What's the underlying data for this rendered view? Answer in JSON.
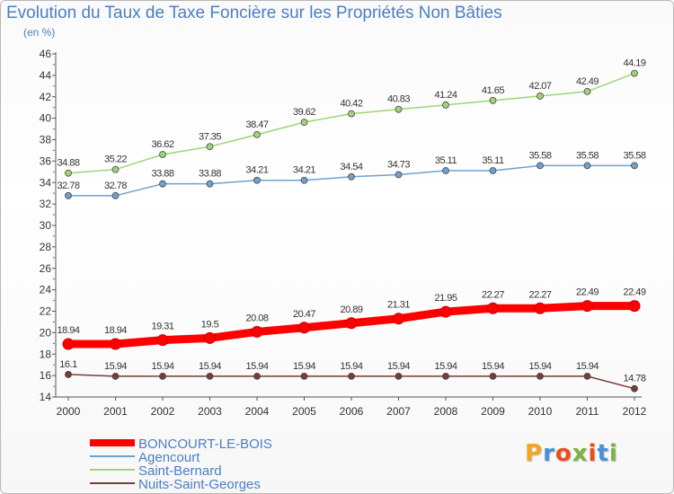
{
  "header": {
    "title": "Evolution du Taux de Taxe Foncière sur les Propriétés Non Bâties",
    "unit": "(en %)"
  },
  "logo": {
    "text": "Proxiti",
    "colors": [
      "#f5a623",
      "#4a90d9",
      "#e94e1b",
      "#7cb342",
      "#e94e1b",
      "#4a90d9",
      "#7cb342"
    ]
  },
  "chart_data": {
    "type": "line",
    "title": "Evolution du Taux de Taxe Foncière sur les Propriétés Non Bâties",
    "ylabel": "(en %)",
    "xlabel": "",
    "x": [
      "2000",
      "2001",
      "2002",
      "2003",
      "2004",
      "2005",
      "2006",
      "2007",
      "2008",
      "2009",
      "2010",
      "2011",
      "2012"
    ],
    "ylim": [
      14,
      46
    ],
    "yticks": [
      14,
      16,
      18,
      20,
      22,
      24,
      26,
      28,
      30,
      32,
      34,
      36,
      38,
      40,
      42,
      44,
      46
    ],
    "grid": false,
    "legend_position": "bottom-left",
    "series": [
      {
        "name": "BONCOURT-LE-BOIS",
        "color": "#ff0000",
        "values": [
          18.94,
          18.94,
          19.31,
          19.5,
          20.08,
          20.47,
          20.89,
          21.31,
          21.95,
          22.27,
          22.27,
          22.49,
          22.49
        ],
        "labels": [
          "18.94",
          "18.94",
          "19.31",
          "19.5",
          "20.08",
          "20.47",
          "20.89",
          "21.31",
          "21.95",
          "22.27",
          "22.27",
          "22.49",
          "22.49"
        ]
      },
      {
        "name": "Agencourt",
        "color": "#6fa1cf",
        "values": [
          32.78,
          32.78,
          33.88,
          33.88,
          34.21,
          34.21,
          34.54,
          34.73,
          35.11,
          35.11,
          35.58,
          35.58,
          35.58
        ],
        "labels": [
          "32.78",
          "32.78",
          "33.88",
          "33.88",
          "34.21",
          "34.21",
          "34.54",
          "34.73",
          "35.11",
          "35.11",
          "35.58",
          "35.58",
          "35.58"
        ]
      },
      {
        "name": "Saint-Bernard",
        "color": "#9fd47a",
        "values": [
          34.88,
          35.22,
          36.62,
          37.35,
          38.47,
          39.62,
          40.42,
          40.83,
          41.24,
          41.65,
          42.07,
          42.49,
          44.19
        ],
        "labels": [
          "34.88",
          "35.22",
          "36.62",
          "37.35",
          "38.47",
          "39.62",
          "40.42",
          "40.83",
          "41.24",
          "41.65",
          "42.07",
          "42.49",
          "44.19"
        ]
      },
      {
        "name": "Nuits-Saint-Georges",
        "color": "#7a3b3b",
        "values": [
          16.1,
          15.94,
          15.94,
          15.94,
          15.94,
          15.94,
          15.94,
          15.94,
          15.94,
          15.94,
          15.94,
          15.94,
          14.78
        ],
        "labels": [
          "16.1",
          "15.94",
          "15.94",
          "15.94",
          "15.94",
          "15.94",
          "15.94",
          "15.94",
          "15.94",
          "15.94",
          "15.94",
          "15.94",
          "14.78"
        ]
      }
    ]
  }
}
